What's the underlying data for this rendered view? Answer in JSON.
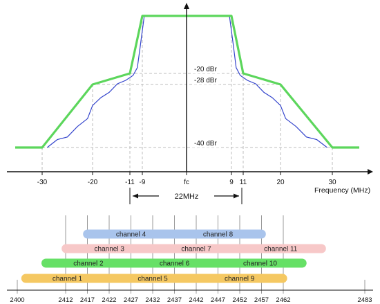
{
  "spectrum": {
    "offset_ticks": [
      {
        "value": -30,
        "label": "-30"
      },
      {
        "value": -20,
        "label": "-20"
      },
      {
        "value": -11,
        "label": "-11"
      },
      {
        "value": -9,
        "label": "-9"
      },
      {
        "value": 0,
        "label": "fc"
      },
      {
        "value": 9,
        "label": "9"
      },
      {
        "value": 11,
        "label": "11"
      },
      {
        "value": 20,
        "label": "20"
      },
      {
        "value": 30,
        "label": "30"
      }
    ],
    "axis_label": "Frequency (MHz)",
    "levels": [
      {
        "label": "-20 dBr",
        "dbr": -20
      },
      {
        "label": "-28 dBr",
        "dbr": -28
      },
      {
        "label": "-40 dBr",
        "dbr": -40
      }
    ],
    "bandwidth_label": "22MHz",
    "mask_color": "#5cd65c",
    "signal_color": "#3344cc",
    "mask_points": [
      [
        -36,
        -40
      ],
      [
        -30,
        -40
      ],
      [
        -20,
        -28
      ],
      [
        -11,
        -20
      ],
      [
        -9,
        0
      ],
      [
        9,
        0
      ],
      [
        11,
        -20
      ],
      [
        20,
        -28
      ],
      [
        30,
        -40
      ],
      [
        36,
        -40
      ]
    ],
    "signal_points": [
      [
        -29,
        -40
      ],
      [
        -27,
        -38.5
      ],
      [
        -25,
        -38
      ],
      [
        -23,
        -36
      ],
      [
        -21,
        -34.5
      ],
      [
        -20,
        -32
      ],
      [
        -18,
        -30.5
      ],
      [
        -16,
        -29.5
      ],
      [
        -14,
        -27.5
      ],
      [
        -12,
        -25
      ],
      [
        -10.5,
        -21.5
      ],
      [
        -9.8,
        -18
      ],
      [
        -9.3,
        -10
      ],
      [
        -8.6,
        0
      ],
      [
        8.6,
        0
      ],
      [
        9.3,
        -10
      ],
      [
        9.8,
        -18
      ],
      [
        10.5,
        -21.5
      ],
      [
        12,
        -25
      ],
      [
        14,
        -27.5
      ],
      [
        16,
        -29.5
      ],
      [
        18,
        -30.5
      ],
      [
        20,
        -32
      ],
      [
        21,
        -34.5
      ],
      [
        23,
        -36
      ],
      [
        25,
        -38
      ],
      [
        27,
        -38.5
      ],
      [
        29,
        -40
      ]
    ]
  },
  "channels": {
    "freq_ticks": [
      "2400",
      "2412",
      "2417",
      "2422",
      "2427",
      "2432",
      "2437",
      "2442",
      "2447",
      "2452",
      "2457",
      "2462",
      "2483"
    ],
    "items": [
      {
        "label": "channel 1",
        "start": 2401,
        "end": 2423,
        "color": "#f5c862",
        "row": 0
      },
      {
        "label": "channel 5",
        "start": 2421,
        "end": 2443,
        "color": "#f5c862",
        "row": 0
      },
      {
        "label": "channel 9",
        "start": 2441,
        "end": 2463,
        "color": "#f5c862",
        "row": 0
      },
      {
        "label": "channel 2",
        "start": 2406,
        "end": 2428,
        "color": "#66e066",
        "row": 1
      },
      {
        "label": "channel 6",
        "start": 2426,
        "end": 2448,
        "color": "#66e066",
        "row": 1
      },
      {
        "label": "channel 10",
        "start": 2446,
        "end": 2468,
        "color": "#66e066",
        "row": 1
      },
      {
        "label": "channel 3",
        "start": 2411,
        "end": 2433,
        "color": "#f7c8c8",
        "row": 2
      },
      {
        "label": "channel 7",
        "start": 2431,
        "end": 2453,
        "color": "#f7c8c8",
        "row": 2
      },
      {
        "label": "channel 11",
        "start": 2451,
        "end": 2473,
        "color": "#f7c8c8",
        "row": 2
      },
      {
        "label": "channel 4",
        "start": 2416,
        "end": 2438,
        "color": "#a9c4ec",
        "row": 3
      },
      {
        "label": "channel 8",
        "start": 2436,
        "end": 2458,
        "color": "#a9c4ec",
        "row": 3
      }
    ]
  }
}
